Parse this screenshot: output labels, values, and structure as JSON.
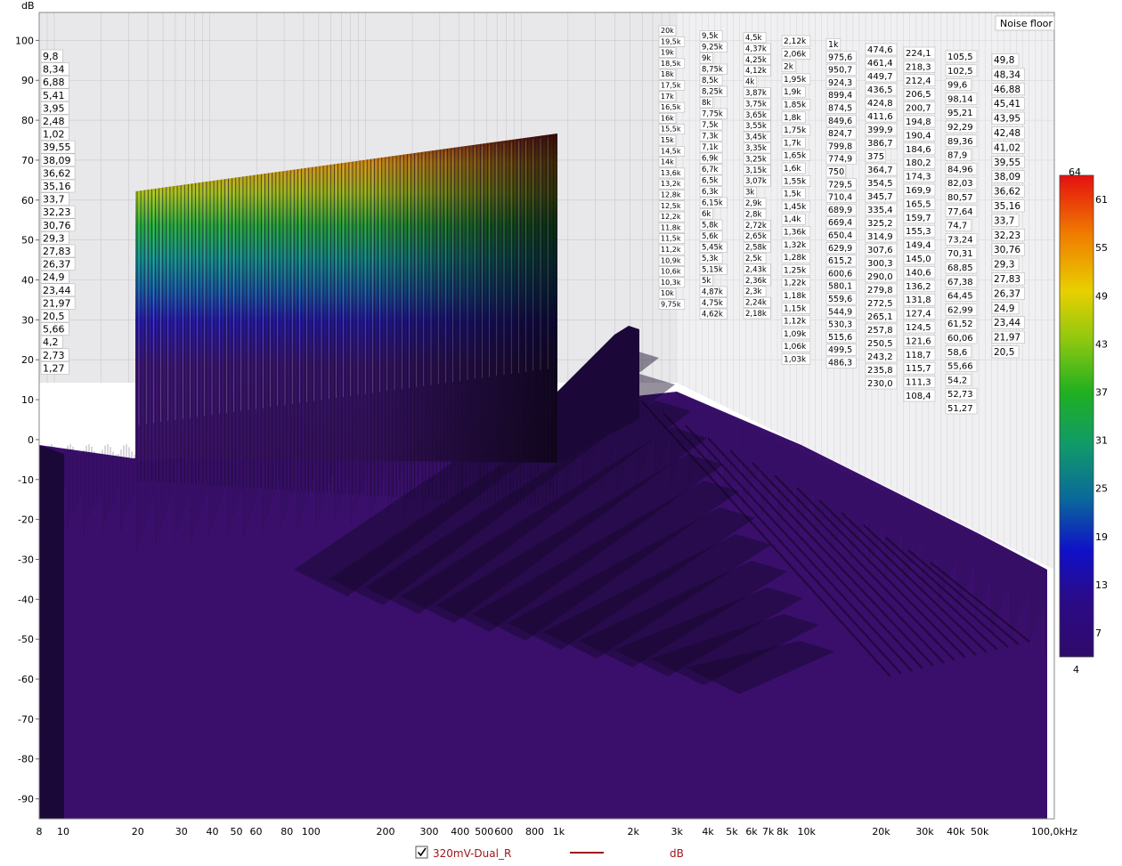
{
  "chart_data": {
    "type": "waterfall",
    "yunit": "dB",
    "y_ticks": [
      100,
      90,
      80,
      70,
      60,
      50,
      40,
      30,
      20,
      10,
      0,
      -10,
      -20,
      -30,
      -40,
      -50,
      -60,
      -70,
      -80,
      -90
    ],
    "x_tick_labels": [
      "8",
      "10",
      "20",
      "30",
      "40",
      "50",
      "60",
      "80",
      "100",
      "200",
      "300",
      "400",
      "500",
      "600",
      "800",
      "1k",
      "2k",
      "3k",
      "4k",
      "5k",
      "6k",
      "7k",
      "8k",
      "10k",
      "20k",
      "30k",
      "40k",
      "50k",
      "100,0kHz"
    ],
    "x_tick_values": [
      8,
      10,
      20,
      30,
      40,
      50,
      60,
      80,
      100,
      200,
      300,
      400,
      500,
      600,
      800,
      1000,
      2000,
      3000,
      4000,
      5000,
      6000,
      7000,
      8000,
      10000,
      20000,
      30000,
      40000,
      50000,
      100000
    ],
    "xlim": [
      8,
      100000
    ],
    "ylim": [
      -95,
      107
    ],
    "x_scale": "log",
    "noise_floor_label": "Noise floor",
    "colorbar": {
      "labels": [
        "64",
        "61",
        "55",
        "49",
        "43",
        "37",
        "31",
        "25",
        "19",
        "13",
        "7",
        "4"
      ],
      "range": [
        4,
        64
      ]
    },
    "slice_labels": [
      [
        "9,8",
        "8,34",
        "6,88",
        "5,41",
        "3,95",
        "2,48",
        "1,02",
        "39,55",
        "38,09",
        "36,62",
        "35,16",
        "33,7",
        "32,23",
        "30,76",
        "29,3",
        "27,83",
        "26,37",
        "24,9",
        "23,44",
        "21,97",
        "20,5",
        "5,66",
        "4,2",
        "2,73",
        "1,27"
      ],
      [
        "20k",
        "19,5k",
        "19k",
        "18,5k",
        "18k",
        "17,5k",
        "17k",
        "16,5k",
        "16k",
        "15,5k",
        "15k",
        "14,5k",
        "14k",
        "13,6k",
        "13,2k",
        "12,8k",
        "12,5k",
        "12,2k",
        "11,8k",
        "11,5k",
        "11,2k",
        "10,9k",
        "10,6k",
        "10,3k",
        "10k",
        "9,75k"
      ],
      [
        "9,5k",
        "9,25k",
        "9k",
        "8,75k",
        "8,5k",
        "8,25k",
        "8k",
        "7,75k",
        "7,5k",
        "7,3k",
        "7,1k",
        "6,9k",
        "6,7k",
        "6,5k",
        "6,3k",
        "6,15k",
        "6k",
        "5,8k",
        "5,6k",
        "5,45k",
        "5,3k",
        "5,15k",
        "5k",
        "4,87k",
        "4,75k",
        "4,62k"
      ],
      [
        "4,5k",
        "4,37k",
        "4,25k",
        "4,12k",
        "4k",
        "3,87k",
        "3,75k",
        "3,65k",
        "3,55k",
        "3,45k",
        "3,35k",
        "3,25k",
        "3,15k",
        "3,07k",
        "3k",
        "2,9k",
        "2,8k",
        "2,72k",
        "2,65k",
        "2,58k",
        "2,5k",
        "2,43k",
        "2,36k",
        "2,3k",
        "2,24k",
        "2,18k"
      ],
      [
        "2,12k",
        "2,06k",
        "2k",
        "1,95k",
        "1,9k",
        "1,85k",
        "1,8k",
        "1,75k",
        "1,7k",
        "1,65k",
        "1,6k",
        "1,55k",
        "1,5k",
        "1,45k",
        "1,4k",
        "1,36k",
        "1,32k",
        "1,28k",
        "1,25k",
        "1,22k",
        "1,18k",
        "1,15k",
        "1,12k",
        "1,09k",
        "1,06k",
        "1,03k"
      ],
      [
        "1k",
        "975,6",
        "950,7",
        "924,3",
        "899,4",
        "874,5",
        "849,6",
        "824,7",
        "799,8",
        "774,9",
        "750",
        "729,5",
        "710,4",
        "689,9",
        "669,4",
        "650,4",
        "629,9",
        "615,2",
        "600,6",
        "580,1",
        "559,6",
        "544,9",
        "530,3",
        "515,6",
        "499,5",
        "486,3"
      ],
      [
        "474,6",
        "461,4",
        "449,7",
        "436,5",
        "424,8",
        "411,6",
        "399,9",
        "386,7",
        "375",
        "364,7",
        "354,5",
        "345,7",
        "335,4",
        "325,2",
        "314,9",
        "307,6",
        "300,3",
        "290,0",
        "279,8",
        "272,5",
        "265,1",
        "257,8",
        "250,5",
        "243,2",
        "235,8",
        "230,0"
      ],
      [
        "224,1",
        "218,3",
        "212,4",
        "206,5",
        "200,7",
        "194,8",
        "190,4",
        "184,6",
        "180,2",
        "174,3",
        "169,9",
        "165,5",
        "159,7",
        "155,3",
        "149,4",
        "145,0",
        "140,6",
        "136,2",
        "131,8",
        "127,4",
        "124,5",
        "121,6",
        "118,7",
        "115,7",
        "111,3",
        "108,4"
      ],
      [
        "105,5",
        "102,5",
        "99,6",
        "98,14",
        "95,21",
        "92,29",
        "89,36",
        "87,9",
        "84,96",
        "82,03",
        "80,57",
        "77,64",
        "74,7",
        "73,24",
        "70,31",
        "68,85",
        "67,38",
        "64,45",
        "62,99",
        "61,52",
        "60,06",
        "58,6",
        "55,66",
        "54,2",
        "52,73",
        "51,27"
      ],
      [
        "49,8",
        "48,34",
        "46,88",
        "45,41",
        "43,95",
        "42,48",
        "41,02",
        "39,55",
        "38,09",
        "36,62",
        "35,16",
        "33,7",
        "32,23",
        "30,76",
        "29,3",
        "27,83",
        "26,37",
        "24,9",
        "23,44",
        "21,97",
        "20,5"
      ]
    ],
    "series": [
      {
        "name": "320mV-Dual_R",
        "unit": "dB",
        "color": "#a0161b"
      }
    ]
  },
  "legend": {
    "series_name": "320mV-Dual_R",
    "unit": "dB",
    "checked": true
  }
}
